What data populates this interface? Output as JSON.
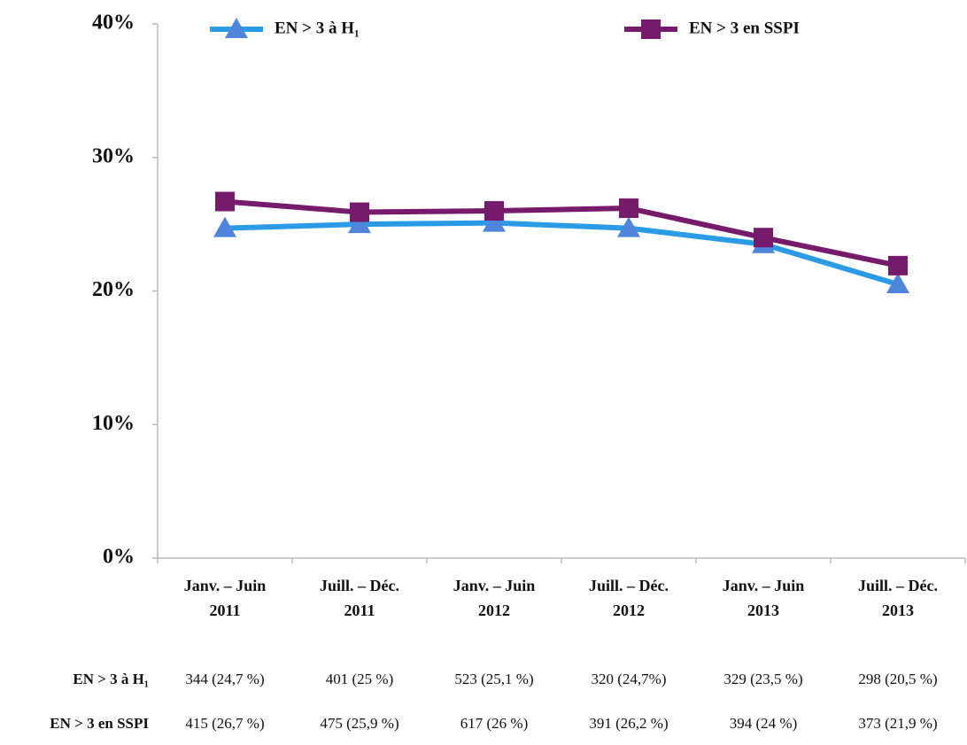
{
  "chart_data": {
    "type": "line",
    "categories": [
      [
        "Janv. – Juin",
        "2011"
      ],
      [
        "Juill. – Déc.",
        "2011"
      ],
      [
        "Janv. – Juin",
        "2012"
      ],
      [
        "Juill. – Déc.",
        "2012"
      ],
      [
        "Janv. – Juin",
        "2013"
      ],
      [
        "Juill. – Déc.",
        "2013"
      ]
    ],
    "series": [
      {
        "name": "EN > 3 à H₁",
        "color": "#2c9be6",
        "marker": "triangle",
        "marker_color": "#4f86dc",
        "values": [
          24.7,
          25,
          25.1,
          24.7,
          23.5,
          20.5
        ]
      },
      {
        "name": "EN > 3 en SSPI",
        "color": "#761a6c",
        "marker": "square",
        "marker_color": "#761a6c",
        "values": [
          26.7,
          25.9,
          26,
          26.2,
          24,
          21.9
        ]
      }
    ],
    "ylim": [
      0,
      40
    ],
    "yticks": [
      {
        "value": 0,
        "label": "0%"
      },
      {
        "value": 10,
        "label": "10%"
      },
      {
        "value": 20,
        "label": "20%"
      },
      {
        "value": 30,
        "label": "30%"
      },
      {
        "value": 40,
        "label": "40%"
      }
    ],
    "grid": false,
    "legend": "top"
  },
  "table": {
    "rows": [
      [
        "344 (24,7 %)",
        "401 (25 %)",
        "523 (25,1 %)",
        "320 (24,7%)",
        "329 (23,5 %)",
        "298 (20,5 %)"
      ],
      [
        "415 (26,7 %)",
        "475 (25,9 %)",
        "617 (26 %)",
        "391 (26,2 %)",
        "394 (24 %)",
        "373 (21,9 %)"
      ]
    ]
  }
}
